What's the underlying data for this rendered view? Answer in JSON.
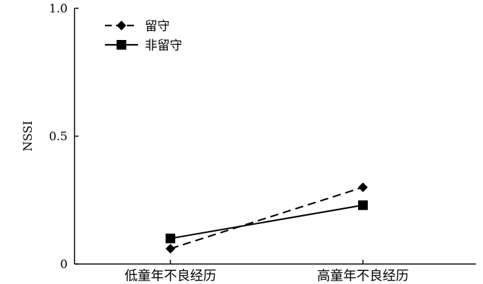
{
  "chart_data": {
    "type": "line",
    "title": "",
    "xlabel": "",
    "ylabel": "NSSI",
    "ylim": [
      0,
      1.0
    ],
    "yticks": [
      0,
      0.5,
      1.0
    ],
    "ytick_labels": [
      "0",
      "0.5",
      "1.0"
    ],
    "categories": [
      "低童年不良经历",
      "高童年不良经历"
    ],
    "grid": false,
    "legend_position": "top-left",
    "series": [
      {
        "name": "留守",
        "values": [
          0.06,
          0.3
        ],
        "line_style": "dashed",
        "marker": "diamond",
        "color": "#000000"
      },
      {
        "name": "非留守",
        "values": [
          0.1,
          0.23
        ],
        "line_style": "solid",
        "marker": "square",
        "color": "#000000"
      }
    ]
  }
}
